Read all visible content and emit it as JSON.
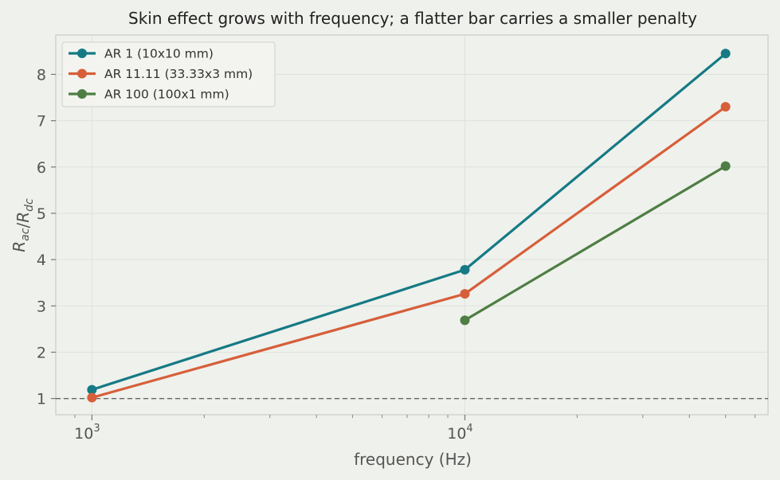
{
  "chart_data": {
    "type": "line",
    "title": "Skin effect grows with frequency; a flatter bar carries a smaller penalty",
    "xlabel": "frequency (Hz)",
    "ylabel": "R_ac/R_dc",
    "x_scale": "log",
    "xlim": [
      800,
      65000
    ],
    "ylim": [
      0.65,
      8.85
    ],
    "x_ticks": [
      1000,
      10000
    ],
    "x_tick_labels": [
      "10",
      "10"
    ],
    "x_tick_exponents": [
      "3",
      "4"
    ],
    "y_ticks": [
      1,
      2,
      3,
      4,
      5,
      6,
      7,
      8
    ],
    "y_tick_labels": [
      "1",
      "2",
      "3",
      "4",
      "5",
      "6",
      "7",
      "8"
    ],
    "grid": true,
    "legend_position": "top-left",
    "reference_line": {
      "y": 1,
      "style": "dashed",
      "color": "#666666"
    },
    "series": [
      {
        "name": "AR 1 (10x10 mm)",
        "color": "#157a85",
        "points": [
          [
            1000,
            1.19
          ],
          [
            10000,
            3.78
          ],
          [
            50000,
            8.45
          ]
        ]
      },
      {
        "name": "AR 11.11 (33.33x3 mm)",
        "color": "#d65f3a",
        "points": [
          [
            1000,
            1.02
          ],
          [
            10000,
            3.26
          ],
          [
            50000,
            7.3
          ]
        ]
      },
      {
        "name": "AR 100 (100x1 mm)",
        "color": "#4e7e44",
        "points": [
          [
            10000,
            2.69
          ],
          [
            50000,
            6.02
          ]
        ]
      }
    ]
  }
}
